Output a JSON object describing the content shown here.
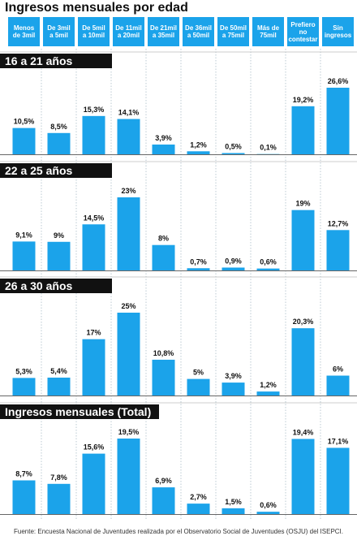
{
  "title": "Ingresos mensuales por edad",
  "categories": [
    "Menos\nde 3mil",
    "De 3mil\na 5mil",
    "De 5mil\na 10mil",
    "De 11mil\na 20mil",
    "De 21mil\na 35mil",
    "De 36mil\na 50mil",
    "De 50mil\na 75mil",
    "Más de\n75mil",
    "Prefiero\nno\ncontestar",
    "Sin\ningresos"
  ],
  "chart_data": [
    {
      "type": "bar",
      "title": "16 a 21 años",
      "color": "#1ba3ea",
      "values": [
        10.5,
        8.5,
        15.3,
        14.1,
        3.9,
        1.2,
        0.5,
        0.1,
        19.2,
        26.6
      ],
      "value_labels": [
        "10,5%",
        "8,5%",
        "15,3%",
        "14,1%",
        "3,9%",
        "1,2%",
        "0,5%",
        "0,1%",
        "19,2%",
        "26,6%"
      ]
    },
    {
      "type": "bar",
      "title": "22 a 25 años",
      "color": "#1ba3ea",
      "values": [
        9.1,
        9,
        14.5,
        23,
        8,
        0.7,
        0.9,
        0.6,
        19,
        12.7
      ],
      "value_labels": [
        "9,1%",
        "9%",
        "14,5%",
        "23%",
        "8%",
        "0,7%",
        "0,9%",
        "0,6%",
        "19%",
        "12,7%"
      ]
    },
    {
      "type": "bar",
      "title": "26 a 30 años",
      "color": "#1ba3ea",
      "values": [
        5.3,
        5.4,
        17,
        25,
        10.8,
        5,
        3.9,
        1.2,
        20.3,
        6
      ],
      "value_labels": [
        "5,3%",
        "5,4%",
        "17%",
        "25%",
        "10,8%",
        "5%",
        "3,9%",
        "1,2%",
        "20,3%",
        "6%"
      ]
    },
    {
      "type": "bar",
      "title": "Ingresos mensuales (Total)",
      "color": "#1ba3ea",
      "values": [
        8.7,
        7.8,
        15.6,
        19.5,
        6.9,
        2.7,
        1.5,
        0.6,
        19.4,
        17.1
      ],
      "value_labels": [
        "8,7%",
        "7,8%",
        "15,6%",
        "19,5%",
        "6,9%",
        "2,7%",
        "1,5%",
        "0,6%",
        "19,4%",
        "17,1%"
      ]
    }
  ],
  "source": "Fuente: Encuesta Nacional de Juventudes realizada por el Observatorio Social de Juventudes (OSJU) del ISEPCI."
}
